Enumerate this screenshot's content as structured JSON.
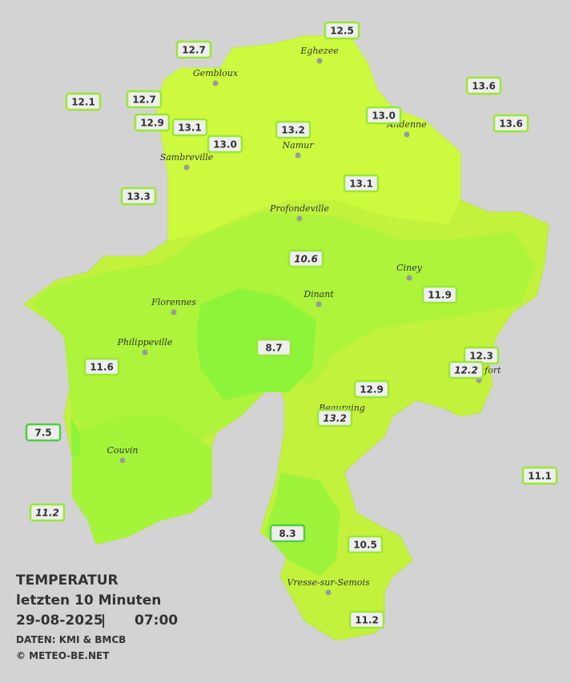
{
  "title": {
    "line1": "TEMPERATUR",
    "line2": "letzten 10 Minuten",
    "date": "29-08-2025",
    "separator": "|",
    "time": "07:00",
    "source": "DATEN: KMI & BMCB",
    "copyright": "© METEO-BE.NET"
  },
  "towns": [
    "Eghezee",
    "Gembloux",
    "Andenne",
    "Namur",
    "Sambreville",
    "Profondeville",
    "Ciney",
    "Dinant",
    "Florennes",
    "Philippeville",
    "Couvin",
    "Vresse-sur-Semois",
    "Beauraing",
    "Rochefort"
  ],
  "stations": [
    "12.5",
    "12.7",
    "12.1",
    "12.7",
    "13.6",
    "13.0",
    "13.6",
    "12.9",
    "13.1",
    "13.2",
    "13.0",
    "13.3",
    "13.1",
    "10.6",
    "11.9",
    "8.7",
    "12.3",
    "12.2",
    "11.6",
    "12.9",
    "13.2",
    "7.5",
    "11.1",
    "11.2",
    "8.3",
    "10.5",
    "11.2"
  ]
}
